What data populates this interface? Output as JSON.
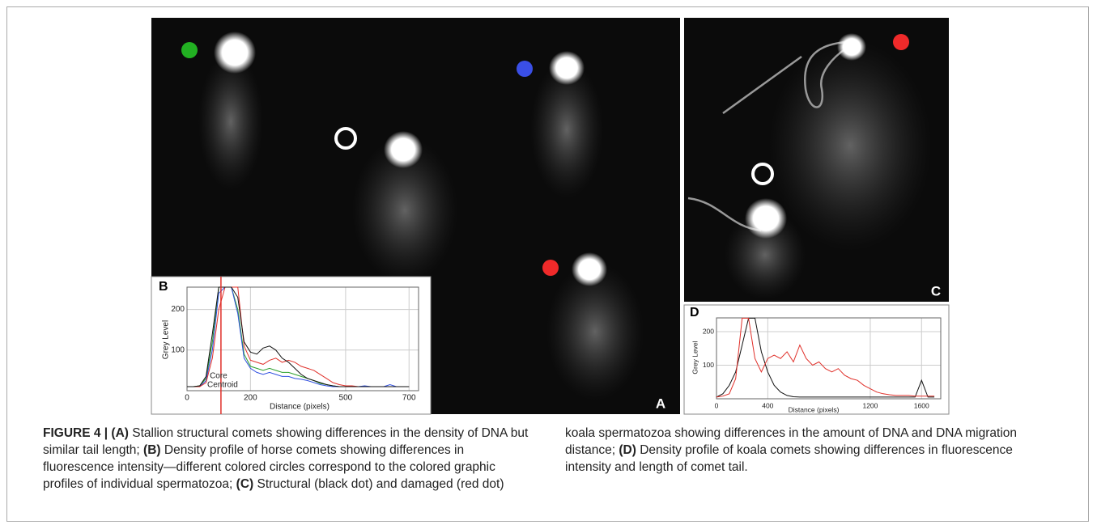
{
  "figure": {
    "panel_labels": {
      "a": "A",
      "c": "C"
    },
    "caption": [
      {
        "text": "FIGURE 4 | (A)",
        "bold": true
      },
      {
        "text": " Stallion structural comets showing differences in the density of DNA but similar tail length; ",
        "bold": false
      },
      {
        "text": "(B)",
        "bold": true
      },
      {
        "text": " Density profile of horse comets showing differences in fluorescence intensity—different colored circles correspond to the colored graphic profiles of individual spermatozoa; ",
        "bold": false
      },
      {
        "text": "(C)",
        "bold": true
      },
      {
        "text": " Structural (black dot) and damaged (red dot) koala spermatozoa showing differences in the amount of DNA and DNA migration distance; ",
        "bold": false
      },
      {
        "text": "(D)",
        "bold": true
      },
      {
        "text": " Density profile of koala comets showing differences in fluorescence intensity and length of comet tail.",
        "bold": false
      }
    ]
  },
  "chart_data": [
    {
      "type": "line",
      "panel": "B",
      "xlabel": "Distance (pixels)",
      "ylabel": "Grey Level",
      "annotation": [
        "Core",
        "Centroid"
      ],
      "marker_x": 107,
      "marker_color": "#e0302a",
      "grid": true,
      "xlim": [
        0,
        730
      ],
      "ylim": [
        0,
        255
      ],
      "xticks": [
        0,
        200,
        500,
        700
      ],
      "yticks": [
        100,
        200
      ],
      "x": [
        0,
        20,
        40,
        60,
        80,
        100,
        120,
        140,
        160,
        180,
        200,
        220,
        240,
        260,
        280,
        300,
        320,
        340,
        360,
        380,
        400,
        420,
        440,
        460,
        480,
        500,
        520,
        540,
        560,
        580,
        600,
        620,
        640,
        660,
        680,
        700
      ],
      "series": [
        {
          "color": "#2ca02c",
          "values": [
            10,
            10,
            12,
            30,
            120,
            255,
            255,
            255,
            200,
            90,
            60,
            55,
            50,
            55,
            50,
            45,
            45,
            40,
            35,
            30,
            25,
            18,
            15,
            12,
            10,
            10,
            10,
            10,
            10,
            10,
            10,
            10,
            10,
            10,
            10,
            10
          ]
        },
        {
          "color": "#3050e0",
          "values": [
            10,
            10,
            10,
            25,
            100,
            240,
            255,
            255,
            190,
            80,
            55,
            45,
            40,
            45,
            40,
            35,
            35,
            30,
            28,
            25,
            20,
            15,
            12,
            10,
            10,
            10,
            10,
            10,
            12,
            10,
            10,
            10,
            15,
            10,
            10,
            10
          ]
        },
        {
          "color": "#e0302a",
          "values": [
            10,
            10,
            10,
            20,
            80,
            200,
            255,
            255,
            255,
            110,
            75,
            70,
            65,
            75,
            80,
            70,
            75,
            70,
            60,
            55,
            50,
            40,
            30,
            20,
            15,
            12,
            12,
            10,
            10,
            10,
            10,
            10,
            10,
            10,
            10,
            10
          ]
        },
        {
          "color": "#111111",
          "values": [
            10,
            10,
            12,
            35,
            140,
            255,
            255,
            255,
            230,
            120,
            95,
            90,
            105,
            110,
            100,
            80,
            70,
            55,
            40,
            30,
            25,
            20,
            15,
            12,
            10,
            10,
            10,
            10,
            10,
            10,
            10,
            10,
            10,
            10,
            10,
            10
          ]
        }
      ]
    },
    {
      "type": "line",
      "panel": "D",
      "xlabel": "Distance (pixels)",
      "ylabel": "Grey Level",
      "grid": true,
      "xlim": [
        0,
        1750
      ],
      "ylim": [
        0,
        241
      ],
      "xticks": [
        0,
        400,
        1200,
        1600
      ],
      "yticks": [
        100,
        200
      ],
      "x": [
        0,
        50,
        100,
        150,
        200,
        250,
        300,
        350,
        400,
        450,
        500,
        550,
        600,
        650,
        700,
        750,
        800,
        850,
        900,
        950,
        1000,
        1050,
        1100,
        1150,
        1200,
        1250,
        1300,
        1350,
        1400,
        1450,
        1500,
        1550,
        1600,
        1650,
        1700
      ],
      "series": [
        {
          "color": "#111111",
          "values": [
            5,
            15,
            40,
            80,
            160,
            240,
            240,
            140,
            80,
            40,
            20,
            10,
            6,
            5,
            5,
            5,
            5,
            5,
            5,
            5,
            5,
            5,
            5,
            5,
            5,
            5,
            5,
            5,
            5,
            5,
            5,
            5,
            55,
            5,
            5
          ]
        },
        {
          "color": "#e0302a",
          "values": [
            5,
            8,
            15,
            60,
            240,
            240,
            120,
            80,
            120,
            130,
            120,
            140,
            110,
            160,
            120,
            100,
            110,
            90,
            80,
            90,
            70,
            60,
            55,
            40,
            30,
            20,
            15,
            12,
            10,
            10,
            10,
            8,
            8,
            8,
            8
          ]
        }
      ]
    }
  ]
}
